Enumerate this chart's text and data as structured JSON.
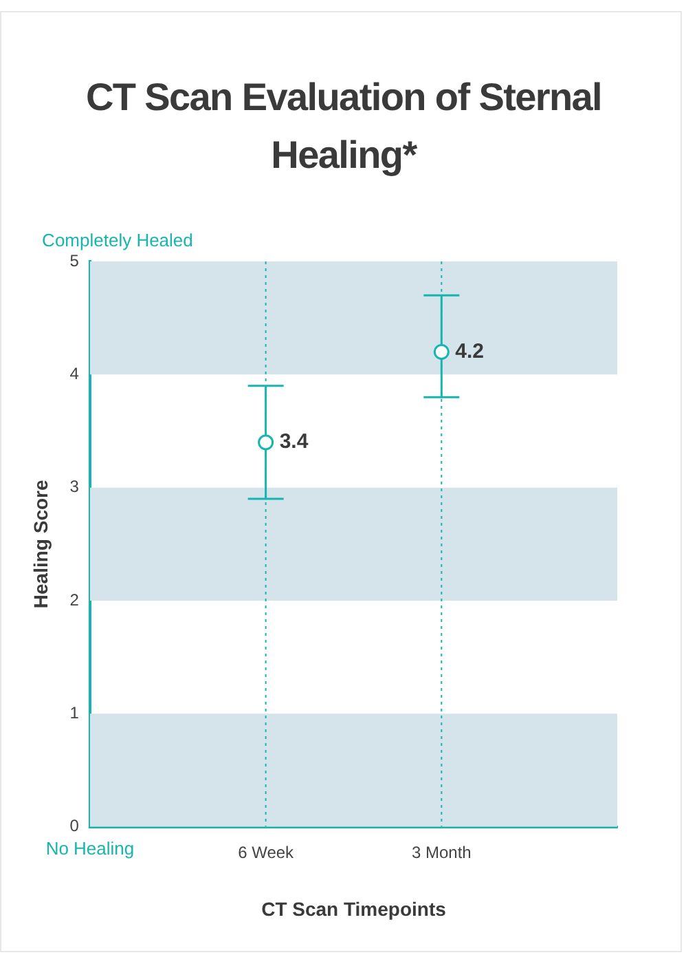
{
  "chart_data": {
    "type": "scatter",
    "title": "CT Scan Evaluation of Sternal Healing*",
    "xlabel": "CT Scan Timepoints",
    "ylabel": "Healing Score",
    "categories": [
      null,
      "6 Week",
      "3 Month",
      null
    ],
    "series": [
      {
        "color": "#17b5b0",
        "values": [
          null,
          3.4,
          4.2,
          null
        ],
        "errors": [
          null,
          [
            2.9,
            3.9
          ],
          [
            3.8,
            4.7
          ],
          null
        ]
      }
    ],
    "data_labels": true,
    "marker": "circle",
    "ylim": [
      0,
      5
    ],
    "yticks": [
      0,
      1,
      2,
      3,
      4,
      5
    ],
    "bands": [
      {
        "axis": "y",
        "from": 0,
        "to": 1,
        "color": "#d5e3ea"
      },
      {
        "axis": "y",
        "from": 2,
        "to": 3,
        "color": "#d5e3ea"
      },
      {
        "axis": "y",
        "from": 4,
        "to": 5,
        "color": "#d5e3ea"
      }
    ],
    "ref_lines": [
      {
        "axis": "x",
        "value": "6 Week",
        "color": "#17b5b0",
        "line_style": "dotted"
      },
      {
        "axis": "x",
        "value": "3 Month",
        "color": "#17b5b0",
        "line_style": "dotted"
      }
    ],
    "annotations": [
      {
        "text": "Completely Healed",
        "y": 5
      },
      {
        "text": "No Healing",
        "y": 0
      }
    ]
  }
}
